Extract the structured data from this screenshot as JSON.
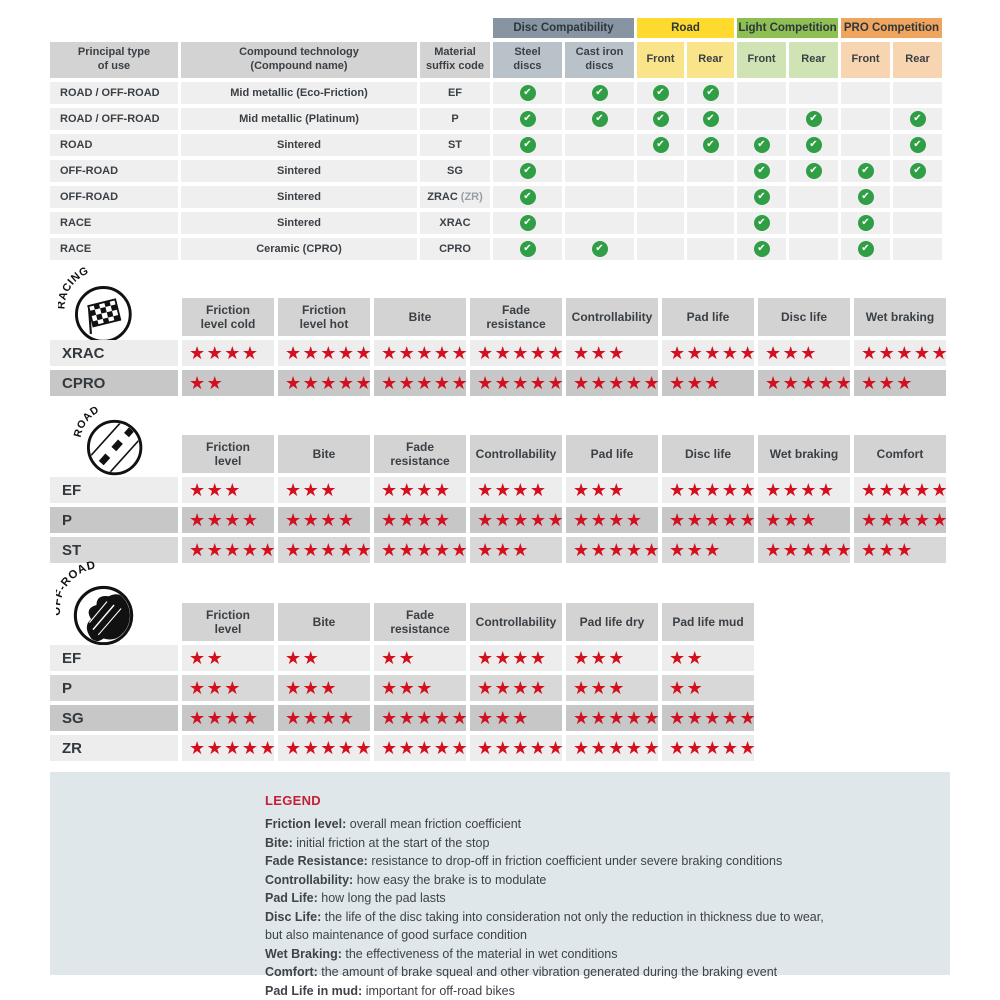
{
  "colors": {
    "star_red": "#d2101e",
    "check_green": "#2f9e45",
    "header_gray": "#d3d3d3",
    "row_light": "#ededed",
    "row_medium": "#d8d8d8",
    "row_dark": "#c7c7c7",
    "legend_bg": "#dfe7eb",
    "legend_title_red": "#c41f33",
    "disc_group": "#8794a1",
    "road_group": "#fed92e",
    "light_group": "#8dbf52",
    "pro_group": "#efa55e"
  },
  "compat_table": {
    "groups": [
      {
        "key": "disc-compatibility",
        "label": "Disc Compatibility",
        "color": "#8794a1"
      },
      {
        "key": "road",
        "label": "Road",
        "color": "#fed92e"
      },
      {
        "key": "light-competition",
        "label": "Light Competition",
        "color": "#8dbf52"
      },
      {
        "key": "pro-competition",
        "label": "PRO Competition",
        "color": "#efa55e"
      }
    ],
    "headers": [
      "Principal type\nof use",
      "Compound technology\n(Compound name)",
      "Material\nsuffix code",
      "Steel\ndiscs",
      "Cast iron\ndiscs",
      "Front",
      "Rear",
      "Front",
      "Rear",
      "Front",
      "Rear"
    ],
    "sub_colors": [
      "#b9c1c9",
      "#b9c1c9",
      "#fae489",
      "#fae489",
      "#d0e3b4",
      "#d0e3b4",
      "#f7d5b1",
      "#f7d5b1"
    ],
    "rows": [
      {
        "use": "ROAD / OFF-ROAD",
        "tech": "Mid metallic (Eco-Friction)",
        "suffix": "EF",
        "suffix_note": "",
        "checks": [
          1,
          1,
          1,
          1,
          0,
          0,
          0,
          0
        ]
      },
      {
        "use": "ROAD / OFF-ROAD",
        "tech": "Mid metallic (Platinum)",
        "suffix": "P",
        "suffix_note": "",
        "checks": [
          1,
          1,
          1,
          1,
          0,
          1,
          0,
          1
        ]
      },
      {
        "use": "ROAD",
        "tech": "Sintered",
        "suffix": "ST",
        "suffix_note": "",
        "checks": [
          1,
          0,
          1,
          1,
          1,
          1,
          0,
          1
        ]
      },
      {
        "use": "OFF-ROAD",
        "tech": "Sintered",
        "suffix": "SG",
        "suffix_note": "",
        "checks": [
          1,
          0,
          0,
          0,
          1,
          1,
          1,
          1
        ]
      },
      {
        "use": "OFF-ROAD",
        "tech": "Sintered",
        "suffix": "ZRAC",
        "suffix_note": "(ZR)",
        "checks": [
          1,
          0,
          0,
          0,
          1,
          0,
          1,
          0
        ]
      },
      {
        "use": "RACE",
        "tech": "Sintered",
        "suffix": "XRAC",
        "suffix_note": "",
        "checks": [
          1,
          0,
          0,
          0,
          1,
          0,
          1,
          0
        ]
      },
      {
        "use": "RACE",
        "tech": "Ceramic (CPRO)",
        "suffix": "CPRO",
        "suffix_note": "",
        "checks": [
          1,
          1,
          0,
          0,
          1,
          0,
          1,
          0
        ]
      }
    ]
  },
  "sections": [
    {
      "key": "racing",
      "icon_label": "RACING",
      "icon": "checkered-flag",
      "columns": [
        "Friction\nlevel cold",
        "Friction\nlevel hot",
        "Bite",
        "Fade\nresistance",
        "Controllability",
        "Pad life",
        "Disc life",
        "Wet braking"
      ],
      "rows": [
        {
          "label": "XRAC",
          "shade": "light",
          "stars": [
            4,
            5,
            5,
            5,
            3,
            5,
            3,
            5
          ]
        },
        {
          "label": "CPRO",
          "shade": "dark",
          "stars": [
            2,
            5,
            5,
            5,
            5,
            3,
            5,
            3
          ]
        }
      ]
    },
    {
      "key": "road",
      "icon_label": "ROAD",
      "icon": "road",
      "columns": [
        "Friction\nlevel",
        "Bite",
        "Fade\nresistance",
        "Controllability",
        "Pad life",
        "Disc life",
        "Wet braking",
        "Comfort"
      ],
      "rows": [
        {
          "label": "EF",
          "shade": "light",
          "stars": [
            3,
            3,
            4,
            4,
            3,
            5,
            4,
            5
          ]
        },
        {
          "label": "P",
          "shade": "dark",
          "stars": [
            4,
            4,
            4,
            5,
            4,
            5,
            3,
            5
          ]
        },
        {
          "label": "ST",
          "shade": "medium",
          "stars": [
            5,
            5,
            5,
            3,
            5,
            3,
            5,
            3
          ]
        }
      ]
    },
    {
      "key": "offroad",
      "icon_label": "OFF-ROAD",
      "icon": "mud-splash",
      "columns": [
        "Friction\nlevel",
        "Bite",
        "Fade\nresistance",
        "Controllability",
        "Pad life dry",
        "Pad life mud"
      ],
      "rows": [
        {
          "label": "EF",
          "shade": "light",
          "stars": [
            2,
            2,
            2,
            4,
            3,
            2
          ]
        },
        {
          "label": "P",
          "shade": "medium",
          "stars": [
            3,
            3,
            3,
            4,
            3,
            2
          ]
        },
        {
          "label": "SG",
          "shade": "dark",
          "stars": [
            4,
            4,
            5,
            3,
            5,
            5
          ]
        },
        {
          "label": "ZR",
          "shade": "light",
          "stars": [
            5,
            5,
            5,
            5,
            5,
            5
          ]
        }
      ]
    }
  ],
  "legend": {
    "title": "LEGEND",
    "lines": [
      {
        "term": "Friction level",
        "desc": "overall mean friction coefficient"
      },
      {
        "term": "Bite",
        "desc": "initial friction at the start of the stop"
      },
      {
        "term": "Fade Resistance",
        "desc": "resistance to drop-off in friction coefficient under severe braking conditions"
      },
      {
        "term": "Controllability",
        "desc": "how easy the brake is to modulate"
      },
      {
        "term": "Pad Life",
        "desc": "how long the pad lasts"
      },
      {
        "term": "Disc Life",
        "desc": "the life of the disc taking into consideration not only the reduction in thickness due to wear,"
      },
      {
        "term": "",
        "desc": "but also maintenance of good surface condition"
      },
      {
        "term": "Wet Braking",
        "desc": "the effectiveness of the material in wet conditions"
      },
      {
        "term": "Comfort",
        "desc": "the amount of brake squeal and other vibration generated during the braking event"
      },
      {
        "term": "Pad Life in mud",
        "desc": "important for off-road bikes"
      }
    ]
  }
}
